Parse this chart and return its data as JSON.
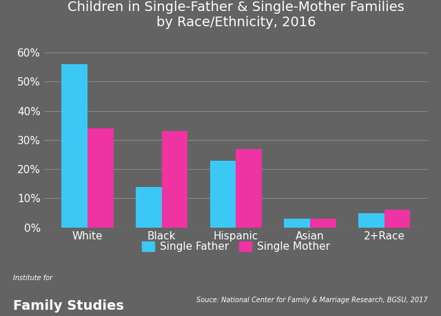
{
  "title": "Children in Single-Father & Single-Mother Families\nby Race/Ethnicity, 2016",
  "categories": [
    "White",
    "Black",
    "Hispanic",
    "Asian",
    "2+Race"
  ],
  "single_father": [
    0.56,
    0.14,
    0.23,
    0.03,
    0.05
  ],
  "single_mother": [
    0.34,
    0.33,
    0.27,
    0.03,
    0.06
  ],
  "bar_color_father": "#3CC8F5",
  "bar_color_mother": "#F033A3",
  "background_color": "#636363",
  "text_color": "#ffffff",
  "grid_color": "#888888",
  "ylim": [
    0,
    0.65
  ],
  "yticks": [
    0.0,
    0.1,
    0.2,
    0.3,
    0.4,
    0.5,
    0.6
  ],
  "legend_father": "Single Father",
  "legend_mother": "Single Mother",
  "source_text": "Souce: National Center for Family & Marriage Research, BGSU, 2017",
  "institute_text1": "Institute for",
  "institute_text2": "Family Studies",
  "title_fontsize": 14,
  "bar_width": 0.35
}
